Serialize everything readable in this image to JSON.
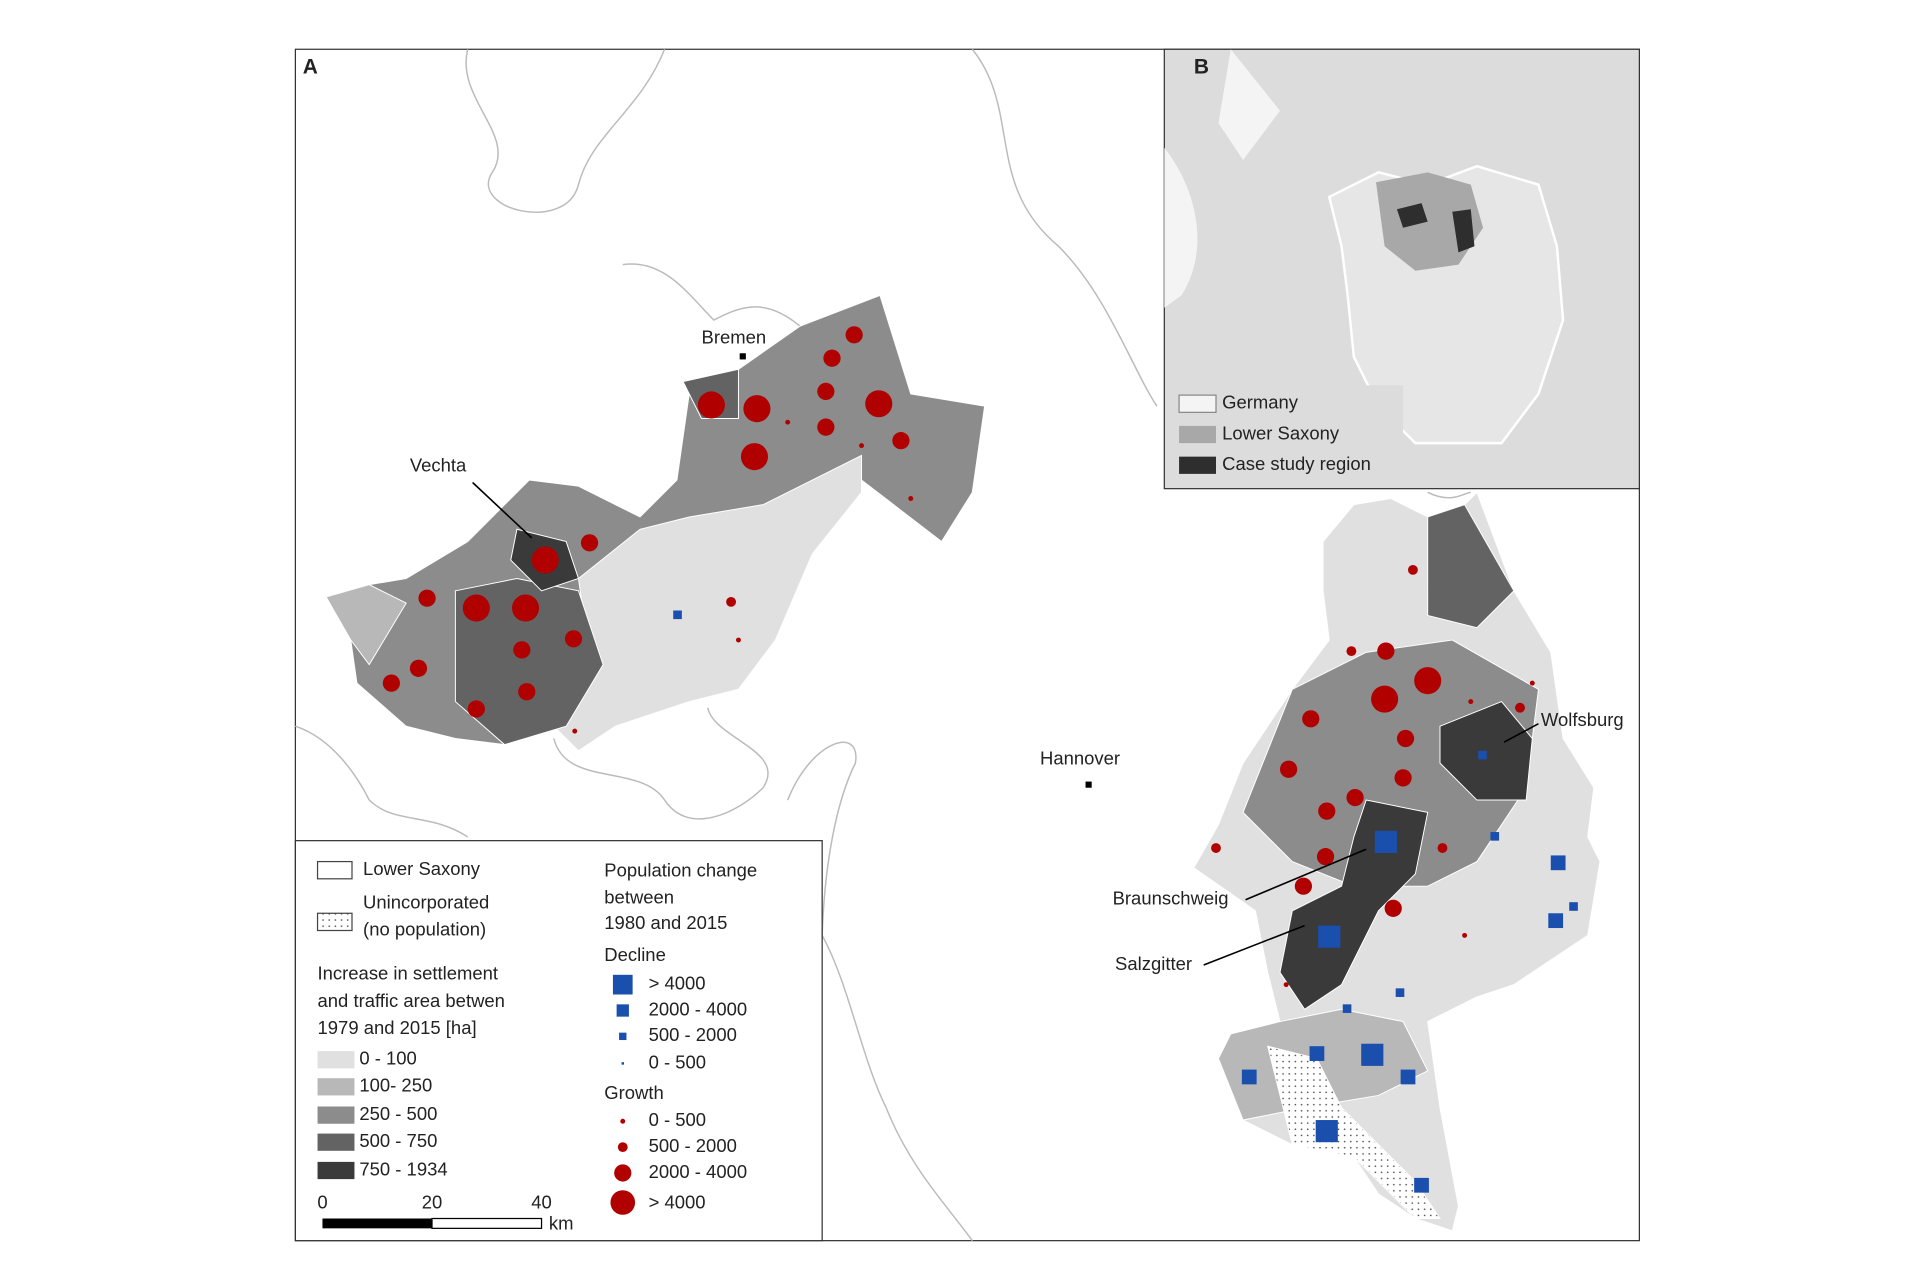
{
  "map": {
    "panel_a": "A",
    "panel_b": "B",
    "places": {
      "bremen": "Bremen",
      "vechta": "Vechta",
      "hannover": "Hannover",
      "wolfsburg": "Wolfsburg",
      "braunschweig": "Braunschweig",
      "salzgitter": "Salzgitter"
    },
    "inset_legend": [
      "Germany",
      "Lower Saxony",
      "Case study region"
    ],
    "legend": {
      "lower_saxony": "Lower Saxony",
      "unincorporated": [
        "Unincorporated",
        "(no population)"
      ],
      "settlement_title": [
        "Increase in settlement",
        "and traffic area betwen",
        "1979 and 2015 [ha]"
      ],
      "settlement_classes": [
        "0 - 100",
        "100- 250",
        "250 - 500",
        "500 - 750",
        "750 - 1934"
      ],
      "population_title": [
        "Population change",
        "between",
        "1980 and 2015"
      ],
      "decline": "Decline",
      "decline_classes": [
        "> 4000",
        "2000 - 4000",
        "500 - 2000",
        "0 - 500"
      ],
      "growth": "Growth",
      "growth_classes": [
        "0 - 500",
        "500 - 2000",
        "2000 - 4000",
        "> 4000"
      ],
      "scale_ticks": [
        "0",
        "20",
        "40"
      ],
      "scale_unit": "km"
    }
  }
}
